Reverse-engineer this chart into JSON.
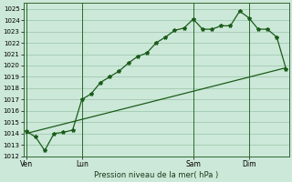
{
  "title": "Pression niveau de la mer( hPa )",
  "bg_color": "#cce8d8",
  "grid_color": "#99c4aa",
  "line_color": "#1a5c1a",
  "ylim": [
    1012,
    1025.5
  ],
  "yticks": [
    1012,
    1013,
    1014,
    1015,
    1016,
    1017,
    1018,
    1019,
    1020,
    1021,
    1022,
    1023,
    1024,
    1025
  ],
  "xtick_labels": [
    "Ven",
    "Lun",
    "Sam",
    "Dim"
  ],
  "xtick_positions": [
    0,
    6,
    18,
    24
  ],
  "vline_positions": [
    0,
    6,
    18,
    24
  ],
  "line1_x": [
    0,
    1,
    2,
    3,
    4,
    5,
    6,
    7,
    8,
    9,
    10,
    11,
    12,
    13,
    14,
    15,
    16,
    17,
    18,
    19,
    20,
    21,
    22,
    23,
    24,
    25,
    26,
    27,
    28
  ],
  "line1_y": [
    1014.2,
    1013.7,
    1012.5,
    1014.0,
    1014.1,
    1014.3,
    1017.0,
    1017.5,
    1018.5,
    1019.0,
    1019.5,
    1020.2,
    1020.8,
    1021.1,
    1022.0,
    1022.5,
    1023.1,
    1023.3,
    1024.1,
    1023.2,
    1023.2,
    1023.5,
    1023.5,
    1024.8,
    1024.2,
    1023.2,
    1023.2,
    1022.5,
    1019.7
  ],
  "line2_x": [
    0,
    28
  ],
  "line2_y": [
    1014.0,
    1019.8
  ],
  "xlim": [
    -0.3,
    28.3
  ],
  "total_points": 29
}
